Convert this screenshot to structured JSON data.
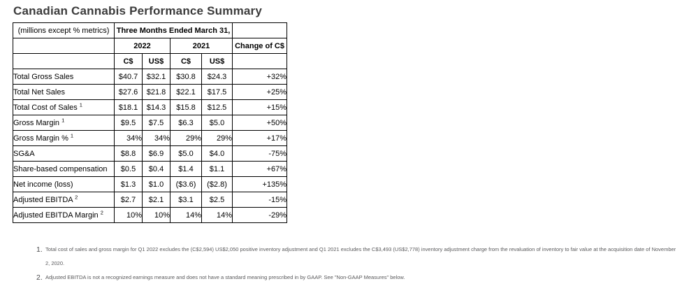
{
  "title": "Canadian Cannabis Performance Summary",
  "table": {
    "header": {
      "units_note": "(millions except % metrics)",
      "period": "Three Months Ended March 31,",
      "years": [
        "2022",
        "2021"
      ],
      "units": [
        "C$",
        "US$",
        "C$",
        "US$"
      ],
      "change": "Change of C$"
    },
    "rows": [
      {
        "label": "Total Gross Sales",
        "sup": "",
        "values": [
          "$40.7",
          "$32.1",
          "$30.8",
          "$24.3"
        ],
        "change": "+32%"
      },
      {
        "label": "Total Net Sales",
        "sup": "",
        "values": [
          "$27.6",
          "$21.8",
          "$22.1",
          "$17.5"
        ],
        "change": "+25%"
      },
      {
        "label": "Total Cost of Sales",
        "sup": "1",
        "values": [
          "$18.1",
          "$14.3",
          "$15.8",
          "$12.5"
        ],
        "change": "+15%"
      },
      {
        "label": "Gross Margin",
        "sup": "1",
        "values": [
          "$9.5",
          "$7.5",
          "$6.3",
          "$5.0"
        ],
        "change": "+50%"
      },
      {
        "label": "Gross Margin %",
        "sup": "1",
        "values": [
          "34%",
          "34%",
          "29%",
          "29%"
        ],
        "change": "+17%"
      },
      {
        "label": "SG&A",
        "sup": "",
        "values": [
          "$8.8",
          "$6.9",
          "$5.0",
          "$4.0"
        ],
        "change": "-75%"
      },
      {
        "label": "Share-based compensation",
        "sup": "",
        "values": [
          "$0.5",
          "$0.4",
          "$1.4",
          "$1.1"
        ],
        "change": "+67%"
      },
      {
        "label": "Net income (loss)",
        "sup": "",
        "values": [
          "$1.3",
          "$1.0",
          "($3.6)",
          "($2.8)"
        ],
        "change": "+135%"
      },
      {
        "label": "Adjusted EBITDA",
        "sup": "2",
        "values": [
          "$2.7",
          "$2.1",
          "$3.1",
          "$2.5"
        ],
        "change": "-15%"
      },
      {
        "label": "Adjusted EBITDA Margin",
        "sup": "2",
        "values": [
          "10%",
          "10%",
          "14%",
          "14%"
        ],
        "change": "-29%"
      }
    ]
  },
  "footnotes": [
    {
      "num": "1.",
      "text": "Total cost of sales and gross margin for Q1 2022 excludes the (C$2,594) US$2,050 positive inventory adjustment and Q1 2021 excludes the C$3,493 (US$2,778) inventory adjustment charge from the revaluation of inventory to fair value at the acquisition date of November 2, 2020."
    },
    {
      "num": "2.",
      "text": "Adjusted EBITDA is not a recognized earnings measure and does not have a standard meaning prescribed in by GAAP. See \"Non-GAAP Measures\" below."
    }
  ]
}
